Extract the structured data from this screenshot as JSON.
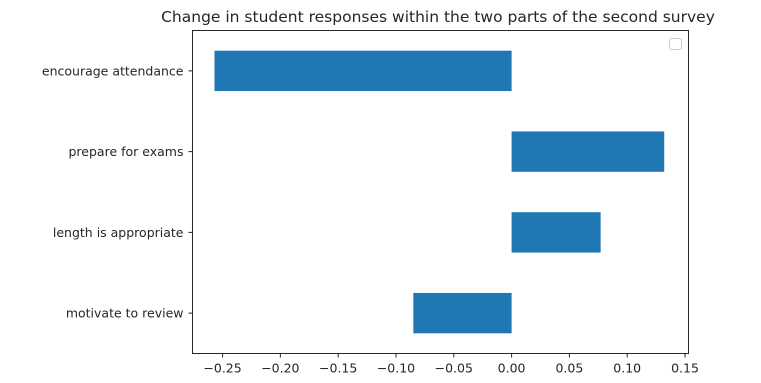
{
  "chart_data": {
    "type": "bar",
    "orientation": "horizontal",
    "title": "Change in student responses within the two parts of the second survey",
    "xlabel": "",
    "ylabel": "",
    "categories": [
      "encourage attendance",
      "prepare for exams",
      "length is appropriate",
      "motivate to review"
    ],
    "values": [
      -0.257,
      0.132,
      0.077,
      -0.085
    ],
    "xlim": [
      -0.276,
      0.153
    ],
    "xticks": [
      -0.25,
      -0.2,
      -0.15,
      -0.1,
      -0.05,
      0.0,
      0.05,
      0.1,
      0.15
    ],
    "xtick_labels": [
      "−0.25",
      "−0.20",
      "−0.15",
      "−0.10",
      "−0.05",
      "0.00",
      "0.05",
      "0.10",
      "0.15"
    ],
    "bar_color": "#1f77b4",
    "grid": false,
    "legend": {
      "placement": "top-right",
      "entries": []
    }
  }
}
